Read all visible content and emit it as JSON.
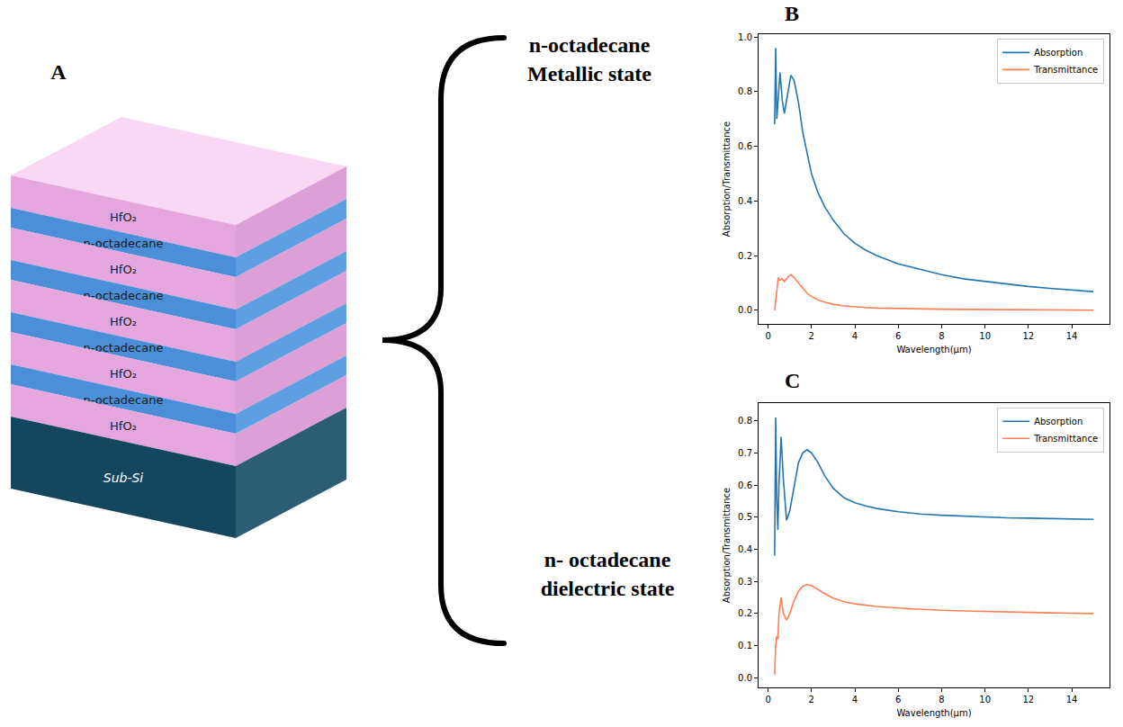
{
  "panel_labels": {
    "diagram": "A",
    "charts": [
      "B",
      "C"
    ]
  },
  "diagram": {
    "layers": [
      "HfO₂",
      "n-octadecane",
      "HfO₂",
      "n-octadecane",
      "HfO₂",
      "n-octadecane",
      "HfO₂",
      "n-octadecane",
      "HfO₂"
    ],
    "substrate": "Sub-Si"
  },
  "states": [
    {
      "lines": [
        "n-octadecane",
        "Metallic state"
      ]
    },
    {
      "lines": [
        "n- octadecane",
        "dielectric state"
      ]
    }
  ],
  "chart_data": [
    {
      "type": "line",
      "x_label": "Wavelength(μm)",
      "y_label": "Absorption/Transmittance",
      "xlim": [
        -0.44,
        15.74
      ],
      "ylim": [
        -0.05,
        1.01
      ],
      "xticks": [
        0,
        2,
        4,
        6,
        8,
        10,
        12,
        14
      ],
      "yticks": [
        {
          "value": 0,
          "label": "0.0"
        },
        {
          "value": 0.2,
          "label": "0.2"
        },
        {
          "value": 0.4,
          "label": "0.4"
        },
        {
          "value": 0.6,
          "label": "0.6"
        },
        {
          "value": 0.8,
          "label": "0.8"
        },
        {
          "value": 1.0,
          "label": "1.0"
        }
      ],
      "grid": false,
      "legend": "upper right",
      "x": [
        0.3,
        0.35,
        0.4,
        0.47,
        0.55,
        0.65,
        0.75,
        0.9,
        1.05,
        1.2,
        1.4,
        1.6,
        1.8,
        2.0,
        2.3,
        2.6,
        3.0,
        3.5,
        4.0,
        4.5,
        5,
        6,
        7,
        8,
        9,
        10,
        11,
        12,
        13,
        14,
        15
      ],
      "series": [
        {
          "name": "Absorption",
          "color": "#1f77b4",
          "values": [
            0.68,
            0.96,
            0.7,
            0.78,
            0.87,
            0.77,
            0.72,
            0.79,
            0.86,
            0.84,
            0.76,
            0.65,
            0.57,
            0.5,
            0.43,
            0.38,
            0.33,
            0.28,
            0.245,
            0.22,
            0.2,
            0.17,
            0.15,
            0.13,
            0.115,
            0.105,
            0.095,
            0.087,
            0.08,
            0.074,
            0.068
          ]
        },
        {
          "name": "Transmittance",
          "color": "#ff7f50",
          "values": [
            0.0,
            0.04,
            0.08,
            0.12,
            0.11,
            0.115,
            0.105,
            0.12,
            0.13,
            0.12,
            0.1,
            0.08,
            0.062,
            0.05,
            0.038,
            0.03,
            0.022,
            0.016,
            0.012,
            0.01,
            0.008,
            0.006,
            0.005,
            0.004,
            0.003,
            0.003,
            0.002,
            0.002,
            0.001,
            0.001,
            0.0
          ]
        }
      ]
    },
    {
      "type": "line",
      "x_label": "Wavelength(μm)",
      "y_label": "Absorption/Transmittance",
      "xlim": [
        -0.44,
        15.74
      ],
      "ylim": [
        -0.03,
        0.855
      ],
      "xticks": [
        0,
        2,
        4,
        6,
        8,
        10,
        12,
        14
      ],
      "yticks": [
        {
          "value": 0,
          "label": "0.0"
        },
        {
          "value": 0.1,
          "label": "0.1"
        },
        {
          "value": 0.2,
          "label": "0.2"
        },
        {
          "value": 0.3,
          "label": "0.3"
        },
        {
          "value": 0.4,
          "label": "0.4"
        },
        {
          "value": 0.5,
          "label": "0.5"
        },
        {
          "value": 0.6,
          "label": "0.6"
        },
        {
          "value": 0.7,
          "label": "0.7"
        },
        {
          "value": 0.8,
          "label": "0.8"
        }
      ],
      "grid": false,
      "legend": "upper right",
      "x": [
        0.3,
        0.35,
        0.4,
        0.45,
        0.5,
        0.6,
        0.7,
        0.85,
        1.0,
        1.2,
        1.4,
        1.6,
        1.8,
        2.0,
        2.3,
        2.6,
        3.0,
        3.5,
        4.0,
        4.5,
        5,
        6,
        7,
        8,
        9,
        10,
        11,
        12,
        13,
        14,
        15
      ],
      "series": [
        {
          "name": "Absorption",
          "color": "#1f77b4",
          "values": [
            0.38,
            0.81,
            0.55,
            0.46,
            0.6,
            0.75,
            0.62,
            0.49,
            0.52,
            0.6,
            0.67,
            0.7,
            0.71,
            0.7,
            0.67,
            0.63,
            0.59,
            0.56,
            0.545,
            0.535,
            0.527,
            0.517,
            0.51,
            0.506,
            0.503,
            0.5,
            0.498,
            0.497,
            0.495,
            0.494,
            0.493
          ]
        },
        {
          "name": "Transmittance",
          "color": "#ff7f50",
          "values": [
            0.01,
            0.1,
            0.13,
            0.12,
            0.2,
            0.25,
            0.2,
            0.18,
            0.2,
            0.24,
            0.27,
            0.285,
            0.29,
            0.287,
            0.275,
            0.262,
            0.248,
            0.237,
            0.23,
            0.225,
            0.222,
            0.217,
            0.213,
            0.21,
            0.208,
            0.206,
            0.204,
            0.203,
            0.202,
            0.201,
            0.2
          ]
        }
      ]
    }
  ]
}
